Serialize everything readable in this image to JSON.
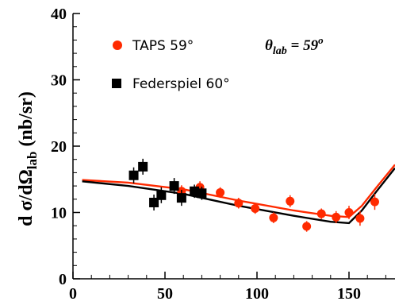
{
  "chart_data": {
    "type": "scatter",
    "ylabel_main": "d σ/dΩ",
    "ylabel_sub": "lab",
    "ylabel_unit": " (nb/sr)",
    "xlabel": "",
    "title": "",
    "xlim": [
      0,
      175
    ],
    "ylim": [
      0,
      40
    ],
    "x_ticks": [
      0,
      50,
      100,
      150
    ],
    "y_ticks": [
      0,
      10,
      20,
      30,
      40
    ],
    "x_tick_labels": [
      "0",
      "50",
      "100",
      "150"
    ],
    "y_tick_labels": [
      "0",
      "10",
      "20",
      "30",
      "40"
    ],
    "annotation": {
      "theta": "θ",
      "sub": "lab",
      "value": " = 59",
      "sup": "o"
    },
    "legend_position": "top-left",
    "series": [
      {
        "name": "TAPS 59°",
        "marker": "circle",
        "color": "#ff2a00",
        "points": [
          {
            "x": 59,
            "y": 13.2,
            "err": 0.9
          },
          {
            "x": 69,
            "y": 13.8,
            "err": 0.9
          },
          {
            "x": 80,
            "y": 13.0,
            "err": 0.8
          },
          {
            "x": 90,
            "y": 11.4,
            "err": 0.8
          },
          {
            "x": 99,
            "y": 10.6,
            "err": 0.8
          },
          {
            "x": 109,
            "y": 9.2,
            "err": 0.8
          },
          {
            "x": 118,
            "y": 11.7,
            "err": 0.9
          },
          {
            "x": 127,
            "y": 7.9,
            "err": 0.8
          },
          {
            "x": 135,
            "y": 9.8,
            "err": 0.8
          },
          {
            "x": 143,
            "y": 9.3,
            "err": 0.9
          },
          {
            "x": 150,
            "y": 10.0,
            "err": 1.0
          },
          {
            "x": 156,
            "y": 9.1,
            "err": 1.1
          },
          {
            "x": 164,
            "y": 11.6,
            "err": 1.2
          }
        ]
      },
      {
        "name": "Federspiel 60°",
        "marker": "square",
        "color": "#000000",
        "points": [
          {
            "x": 33,
            "y": 15.6,
            "err": 1.2
          },
          {
            "x": 38,
            "y": 16.9,
            "err": 1.2
          },
          {
            "x": 44,
            "y": 11.5,
            "err": 1.2
          },
          {
            "x": 48,
            "y": 12.6,
            "err": 1.2
          },
          {
            "x": 55,
            "y": 14.0,
            "err": 1.2
          },
          {
            "x": 59,
            "y": 12.2,
            "err": 1.2
          },
          {
            "x": 66,
            "y": 13.2,
            "err": 1.0
          },
          {
            "x": 70,
            "y": 12.9,
            "err": 1.0
          }
        ]
      }
    ],
    "curves": [
      {
        "color": "#ff2a00",
        "points": [
          [
            5,
            14.9
          ],
          [
            30,
            14.5
          ],
          [
            60,
            13.5
          ],
          [
            90,
            11.8
          ],
          [
            120,
            10.3
          ],
          [
            140,
            9.5
          ],
          [
            150,
            9.3
          ],
          [
            157,
            11.0
          ],
          [
            165,
            13.8
          ],
          [
            175,
            17.2
          ]
        ]
      },
      {
        "color": "#000000",
        "points": [
          [
            5,
            14.7
          ],
          [
            30,
            14.0
          ],
          [
            60,
            12.8
          ],
          [
            90,
            11.0
          ],
          [
            120,
            9.5
          ],
          [
            140,
            8.6
          ],
          [
            150,
            8.4
          ],
          [
            157,
            10.3
          ],
          [
            165,
            13.2
          ],
          [
            175,
            16.7
          ]
        ]
      }
    ]
  }
}
